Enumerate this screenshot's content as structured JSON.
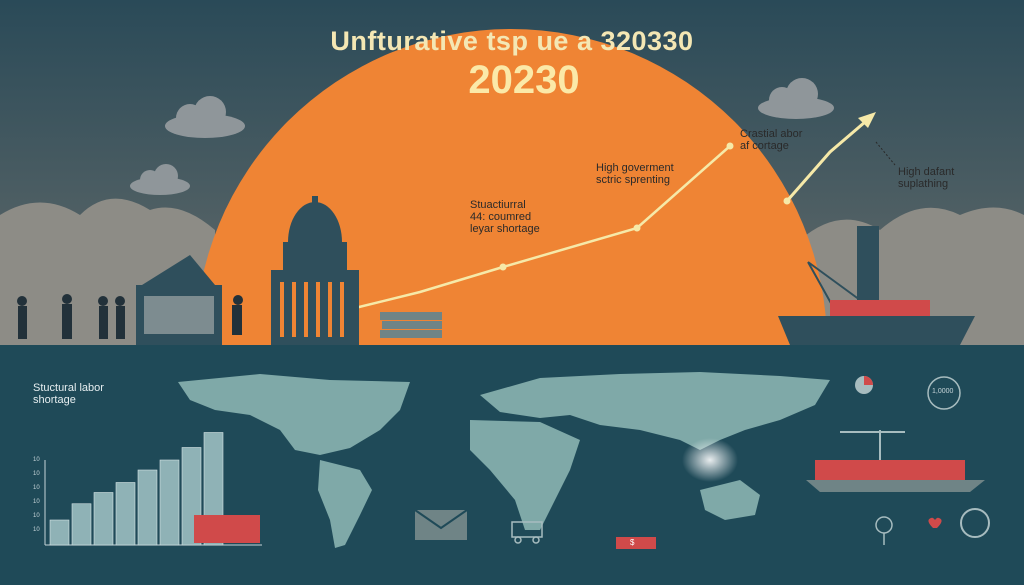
{
  "title": "Unfturative tsp ue a 320330",
  "year": "20230",
  "annotations": {
    "high_gov_line1": "High goverment",
    "high_gov_line2": "sctric sprenting",
    "structural_line1": "Stuactiurral",
    "structural_line2": "44: coumred",
    "structural_line3": "leyar shortage",
    "crastial_line1": "Crastial abor",
    "crastial_line2": "af cortage",
    "high_dafant_line1": "High dafant",
    "high_dafant_line2": "suplathing",
    "structual_labor_line1": "Stuctural labor",
    "structual_labor_line2": "shortage",
    "box_label": "$",
    "circle_label": "1,0000"
  },
  "colors": {
    "sky": "#2f4f5c",
    "sun": "#ef8434",
    "ocean": "#1f4a58",
    "land": "#7fa9a8",
    "trend": "#f6e9a8",
    "ship": "#d04a4a"
  },
  "bar_levels": [
    0.2,
    0.33,
    0.42,
    0.5,
    0.6,
    0.68,
    0.78,
    0.9
  ],
  "axis_ticks": [
    "10",
    "10",
    "10",
    "10",
    "10",
    "10"
  ]
}
